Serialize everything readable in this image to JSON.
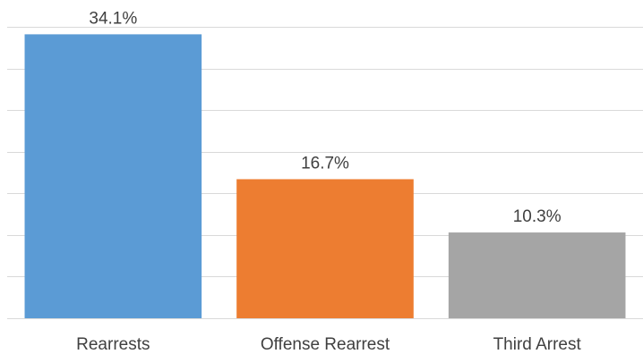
{
  "chart_data": {
    "type": "bar",
    "categories": [
      "Rearrests",
      "Offense Rearrest",
      "Third Arrest"
    ],
    "values": [
      34.1,
      16.7,
      10.3
    ],
    "value_labels": [
      "34.1%",
      "16.7%",
      "10.3%"
    ],
    "colors": [
      "#5B9BD5",
      "#ED7D31",
      "#A5A5A5"
    ],
    "title": "",
    "xlabel": "",
    "ylabel": "",
    "ylim": [
      0,
      35
    ],
    "ytick_step": 5,
    "grid": true,
    "grid_color": "#D9D9D9",
    "legend": "none"
  }
}
